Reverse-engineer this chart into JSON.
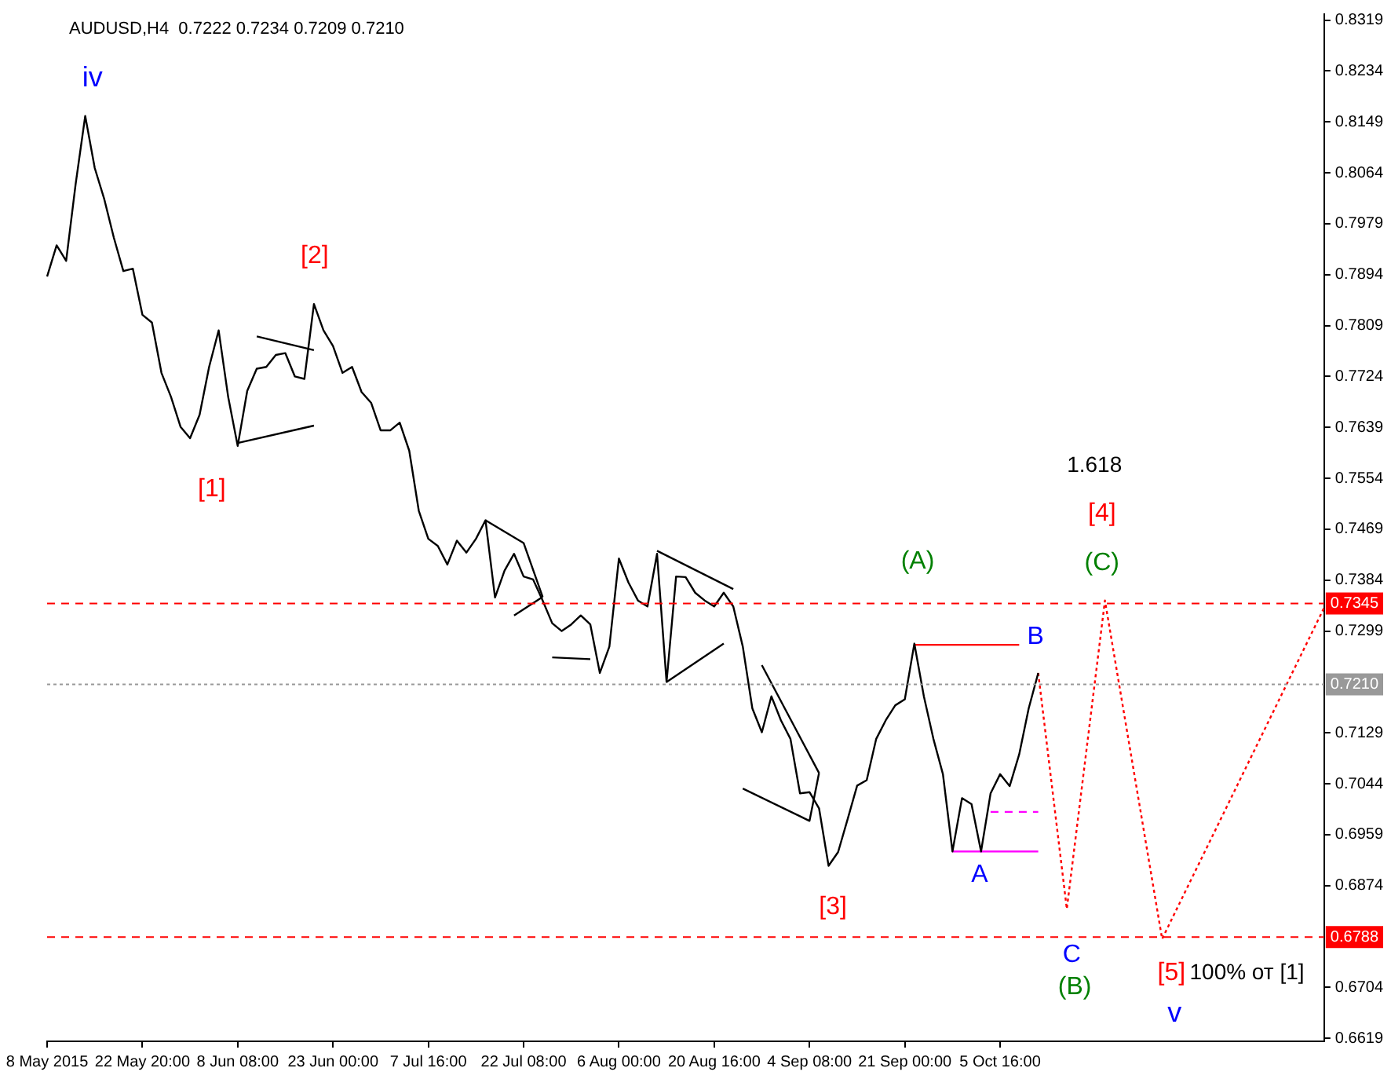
{
  "chart_data": {
    "type": "line",
    "title": "AUDUSD,H4  0.7222 0.7234 0.7209 0.7210",
    "marker": "none",
    "grid": false,
    "legend": false,
    "categories": [
      "8 May 2015",
      null,
      null,
      null,
      null,
      null,
      null,
      null,
      null,
      null,
      "22 May 20:00",
      null,
      null,
      null,
      null,
      null,
      null,
      null,
      null,
      null,
      "8 Jun 08:00",
      null,
      null,
      null,
      null,
      null,
      null,
      null,
      null,
      null,
      "23 Jun 00:00",
      null,
      null,
      null,
      null,
      null,
      null,
      null,
      null,
      null,
      "7 Jul 16:00",
      null,
      null,
      null,
      null,
      null,
      null,
      null,
      null,
      null,
      "22 Jul 08:00",
      null,
      null,
      null,
      null,
      null,
      null,
      null,
      null,
      null,
      "6 Aug 00:00",
      null,
      null,
      null,
      null,
      null,
      null,
      null,
      null,
      null,
      "20 Aug 16:00",
      null,
      null,
      null,
      null,
      null,
      null,
      null,
      null,
      null,
      "4 Sep 08:00",
      null,
      null,
      null,
      null,
      null,
      null,
      null,
      null,
      null,
      "21 Sep 00:00",
      null,
      null,
      null,
      null,
      null,
      null,
      null,
      null,
      null,
      "5 Oct 16:00",
      null,
      null,
      null,
      null,
      null,
      null,
      null,
      null,
      null,
      null,
      null,
      null,
      null,
      null,
      null,
      null,
      null,
      null,
      null,
      null,
      null,
      null,
      null,
      null,
      null,
      null,
      null,
      null,
      null,
      null,
      null,
      null,
      null,
      null
    ],
    "ylim": [
      0.6614,
      0.8329
    ],
    "yticks": [
      0.6619,
      0.6704,
      0.6874,
      0.6959,
      0.7044,
      0.7129,
      0.7299,
      0.7384,
      0.7469,
      0.7554,
      0.7639,
      0.7724,
      0.7809,
      0.7894,
      0.7979,
      0.8064,
      0.8149,
      0.8234,
      0.8319
    ],
    "series": [
      {
        "color": "#000000",
        "line_style": "solid",
        "values": [
          0.7891,
          0.7943,
          0.7917,
          0.8046,
          0.8159,
          0.8072,
          0.802,
          0.7956,
          0.79,
          0.7904,
          0.7827,
          0.7814,
          0.773,
          0.769,
          0.764,
          0.7621,
          0.766,
          0.774,
          0.7801,
          0.769,
          0.7608,
          0.77,
          0.7737,
          0.774,
          0.776,
          0.7763,
          0.7724,
          0.772,
          0.7845,
          0.7801,
          0.7775,
          0.773,
          0.774,
          0.7698,
          0.768,
          0.7634,
          0.7634,
          0.7647,
          0.76,
          0.75,
          0.7453,
          0.7441,
          0.741,
          0.745,
          0.743,
          0.7453,
          0.7484,
          0.7355,
          0.74,
          0.7428,
          0.739,
          0.7385,
          0.735,
          0.7312,
          0.7299,
          0.731,
          0.7325,
          0.731,
          0.7229,
          0.7273,
          0.742,
          0.738,
          0.735,
          0.734,
          0.7428,
          0.7214,
          0.739,
          0.7389,
          0.7363,
          0.735,
          0.734,
          0.7363,
          0.734,
          0.7273,
          0.717,
          0.713,
          0.719,
          0.715,
          0.7119,
          0.7028,
          0.703,
          0.7003,
          0.6907,
          0.693,
          0.6985,
          0.7041,
          0.705,
          0.7119,
          0.715,
          0.7175,
          0.7185,
          0.7278,
          0.719,
          0.7119,
          0.706,
          0.6931,
          0.702,
          0.701,
          0.6931,
          0.7028,
          0.706,
          0.704,
          0.7093,
          0.717,
          0.7229,
          null,
          null,
          null,
          null,
          null,
          null,
          null,
          null,
          null,
          null,
          null,
          null,
          null,
          null,
          null,
          null,
          null,
          null,
          null,
          null,
          null,
          null,
          null,
          null,
          null,
          null,
          null,
          null,
          null,
          null
        ]
      },
      {
        "color": "#ff0000",
        "line_style": "dotted",
        "values": [
          null,
          null,
          null,
          null,
          null,
          null,
          null,
          null,
          null,
          null,
          null,
          null,
          null,
          null,
          null,
          null,
          null,
          null,
          null,
          null,
          null,
          null,
          null,
          null,
          null,
          null,
          null,
          null,
          null,
          null,
          null,
          null,
          null,
          null,
          null,
          null,
          null,
          null,
          null,
          null,
          null,
          null,
          null,
          null,
          null,
          null,
          null,
          null,
          null,
          null,
          null,
          null,
          null,
          null,
          null,
          null,
          null,
          null,
          null,
          null,
          null,
          null,
          null,
          null,
          null,
          null,
          null,
          null,
          null,
          null,
          null,
          null,
          null,
          null,
          null,
          null,
          null,
          null,
          null,
          null,
          null,
          null,
          null,
          null,
          null,
          null,
          null,
          null,
          null,
          null,
          null,
          null,
          null,
          null,
          null,
          null,
          null,
          null,
          null,
          null,
          null,
          null,
          null,
          null,
          0.7229,
          null,
          null,
          0.6835,
          null,
          null,
          null,
          0.735,
          null,
          null,
          null,
          null,
          null,
          0.6785,
          null,
          null,
          null,
          null,
          null,
          null,
          null,
          null,
          null,
          null,
          null,
          null,
          null,
          null,
          null,
          null,
          0.7338
        ]
      },
      {
        "color": "#ff0000",
        "line_style": "solid",
        "values": [
          null,
          null,
          null,
          null,
          null,
          null,
          null,
          null,
          null,
          null,
          null,
          null,
          null,
          null,
          null,
          null,
          null,
          null,
          null,
          null,
          null,
          null,
          null,
          null,
          null,
          null,
          null,
          null,
          null,
          null,
          null,
          null,
          null,
          null,
          null,
          null,
          null,
          null,
          null,
          null,
          null,
          null,
          null,
          null,
          null,
          null,
          null,
          null,
          null,
          null,
          null,
          null,
          null,
          null,
          null,
          null,
          null,
          null,
          null,
          null,
          null,
          null,
          null,
          null,
          null,
          null,
          null,
          null,
          null,
          null,
          null,
          null,
          null,
          null,
          null,
          null,
          null,
          null,
          null,
          null,
          null,
          null,
          null,
          null,
          null,
          null,
          null,
          null,
          null,
          null,
          null,
          0.7276,
          null,
          null,
          null,
          null,
          null,
          null,
          null,
          null,
          null,
          null,
          0.7276,
          null,
          null,
          null,
          null,
          null,
          null,
          null,
          null,
          null,
          null,
          null,
          null,
          null,
          null,
          null,
          null,
          null,
          null,
          null,
          null,
          null,
          null,
          null,
          null,
          null,
          null,
          null,
          null,
          null,
          null,
          null,
          null
        ]
      },
      {
        "color": "#ff00ff",
        "line_style": "solid",
        "values": [
          null,
          null,
          null,
          null,
          null,
          null,
          null,
          null,
          null,
          null,
          null,
          null,
          null,
          null,
          null,
          null,
          null,
          null,
          null,
          null,
          null,
          null,
          null,
          null,
          null,
          null,
          null,
          null,
          null,
          null,
          null,
          null,
          null,
          null,
          null,
          null,
          null,
          null,
          null,
          null,
          null,
          null,
          null,
          null,
          null,
          null,
          null,
          null,
          null,
          null,
          null,
          null,
          null,
          null,
          null,
          null,
          null,
          null,
          null,
          null,
          null,
          null,
          null,
          null,
          null,
          null,
          null,
          null,
          null,
          null,
          null,
          null,
          null,
          null,
          null,
          null,
          null,
          null,
          null,
          null,
          null,
          null,
          null,
          null,
          null,
          null,
          null,
          null,
          null,
          null,
          null,
          null,
          null,
          null,
          null,
          0.6931,
          null,
          null,
          null,
          null,
          null,
          null,
          null,
          null,
          0.6931,
          null,
          null,
          null,
          null,
          null,
          null,
          null,
          null,
          null,
          null,
          null,
          null,
          null,
          null,
          null,
          null,
          null,
          null,
          null,
          null,
          null,
          null,
          null,
          null,
          null,
          null,
          null,
          null,
          null,
          null
        ]
      },
      {
        "color": "#ff00ff",
        "line_style": "dashed",
        "values": [
          null,
          null,
          null,
          null,
          null,
          null,
          null,
          null,
          null,
          null,
          null,
          null,
          null,
          null,
          null,
          null,
          null,
          null,
          null,
          null,
          null,
          null,
          null,
          null,
          null,
          null,
          null,
          null,
          null,
          null,
          null,
          null,
          null,
          null,
          null,
          null,
          null,
          null,
          null,
          null,
          null,
          null,
          null,
          null,
          null,
          null,
          null,
          null,
          null,
          null,
          null,
          null,
          null,
          null,
          null,
          null,
          null,
          null,
          null,
          null,
          null,
          null,
          null,
          null,
          null,
          null,
          null,
          null,
          null,
          null,
          null,
          null,
          null,
          null,
          null,
          null,
          null,
          null,
          null,
          null,
          null,
          null,
          null,
          null,
          null,
          null,
          null,
          null,
          null,
          null,
          null,
          null,
          null,
          null,
          null,
          null,
          null,
          null,
          null,
          0.6997,
          null,
          null,
          null,
          null,
          0.6997,
          null,
          null,
          null,
          null,
          null,
          null,
          null,
          null,
          null,
          null,
          null,
          null,
          null,
          null,
          null,
          null,
          null,
          null,
          null,
          null,
          null,
          null,
          null,
          null,
          null,
          null,
          null,
          null,
          null,
          null
        ]
      },
      {
        "color": "#000000",
        "line_style": "solid",
        "values": [
          null,
          null,
          null,
          null,
          null,
          null,
          null,
          null,
          null,
          null,
          null,
          null,
          null,
          null,
          null,
          null,
          null,
          null,
          null,
          null,
          null,
          null,
          0.7791,
          null,
          null,
          null,
          null,
          null,
          0.7768,
          null,
          null,
          null,
          null,
          null,
          null,
          null,
          null,
          null,
          null,
          null,
          null,
          null,
          null,
          null,
          null,
          null,
          null,
          null,
          null,
          null,
          null,
          null,
          null,
          null,
          null,
          null,
          null,
          null,
          null,
          null,
          null,
          null,
          null,
          null,
          null,
          null,
          null,
          null,
          null,
          null,
          null,
          null,
          null,
          null,
          null,
          null,
          null,
          null,
          null,
          null,
          null,
          null,
          null,
          null,
          null,
          null,
          null,
          null,
          null,
          null,
          null,
          null,
          null,
          null,
          null,
          null,
          null,
          null,
          null,
          null,
          null,
          null,
          null,
          null,
          null,
          null,
          null,
          null,
          null,
          null,
          null,
          null,
          null,
          null,
          null,
          null,
          null,
          null,
          null,
          null,
          null,
          null,
          null,
          null,
          null,
          null,
          null,
          null,
          null,
          null,
          null,
          null,
          null,
          null,
          null
        ]
      },
      {
        "color": "#000000",
        "line_style": "solid",
        "values": [
          null,
          null,
          null,
          null,
          null,
          null,
          null,
          null,
          null,
          null,
          null,
          null,
          null,
          null,
          null,
          null,
          null,
          null,
          null,
          null,
          0.7613,
          null,
          null,
          null,
          null,
          null,
          null,
          null,
          0.7642,
          null,
          null,
          null,
          null,
          null,
          null,
          null,
          null,
          null,
          null,
          null,
          null,
          null,
          null,
          null,
          null,
          null,
          null,
          null,
          null,
          null,
          null,
          null,
          null,
          null,
          null,
          null,
          null,
          null,
          null,
          null,
          null,
          null,
          null,
          null,
          null,
          null,
          null,
          null,
          null,
          null,
          null,
          null,
          null,
          null,
          null,
          null,
          null,
          null,
          null,
          null,
          null,
          null,
          null,
          null,
          null,
          null,
          null,
          null,
          null,
          null,
          null,
          null,
          null,
          null,
          null,
          null,
          null,
          null,
          null,
          null,
          null,
          null,
          null,
          null,
          null,
          null,
          null,
          null,
          null,
          null,
          null,
          null,
          null,
          null,
          null,
          null,
          null,
          null,
          null,
          null,
          null,
          null,
          null,
          null,
          null,
          null,
          null,
          null,
          null,
          null,
          null,
          null,
          null,
          null,
          null
        ]
      },
      {
        "color": "#000000",
        "line_style": "solid",
        "values": [
          null,
          null,
          null,
          null,
          null,
          null,
          null,
          null,
          null,
          null,
          null,
          null,
          null,
          null,
          null,
          null,
          null,
          null,
          null,
          null,
          null,
          null,
          null,
          null,
          null,
          null,
          null,
          null,
          null,
          null,
          null,
          null,
          null,
          null,
          null,
          null,
          null,
          null,
          null,
          null,
          null,
          null,
          null,
          null,
          null,
          null,
          0.7484,
          null,
          null,
          null,
          0.7446,
          null,
          0.7356,
          null,
          null,
          null,
          null,
          null,
          null,
          null,
          null,
          null,
          null,
          null,
          null,
          null,
          null,
          null,
          null,
          null,
          null,
          null,
          null,
          null,
          null,
          null,
          null,
          null,
          null,
          null,
          null,
          null,
          null,
          null,
          null,
          null,
          null,
          null,
          null,
          null,
          null,
          null,
          null,
          null,
          null,
          null,
          null,
          null,
          null,
          null,
          null,
          null,
          null,
          null,
          null,
          null,
          null,
          null,
          null,
          null,
          null,
          null,
          null,
          null,
          null,
          null,
          null,
          null,
          null,
          null,
          null,
          null,
          null,
          null,
          null,
          null,
          null,
          null,
          null,
          null,
          null,
          null,
          null,
          null,
          null
        ]
      },
      {
        "color": "#000000",
        "line_style": "solid",
        "values": [
          null,
          null,
          null,
          null,
          null,
          null,
          null,
          null,
          null,
          null,
          null,
          null,
          null,
          null,
          null,
          null,
          null,
          null,
          null,
          null,
          null,
          null,
          null,
          null,
          null,
          null,
          null,
          null,
          null,
          null,
          null,
          null,
          null,
          null,
          null,
          null,
          null,
          null,
          null,
          null,
          null,
          null,
          null,
          null,
          null,
          null,
          null,
          null,
          null,
          0.7325,
          null,
          null,
          0.7356,
          null,
          null,
          null,
          null,
          null,
          null,
          null,
          null,
          null,
          null,
          null,
          null,
          null,
          null,
          null,
          null,
          null,
          null,
          null,
          null,
          null,
          null,
          null,
          null,
          null,
          null,
          null,
          null,
          null,
          null,
          null,
          null,
          null,
          null,
          null,
          null,
          null,
          null,
          null,
          null,
          null,
          null,
          null,
          null,
          null,
          null,
          null,
          null,
          null,
          null,
          null,
          null,
          null,
          null,
          null,
          null,
          null,
          null,
          null,
          null,
          null,
          null,
          null,
          null,
          null,
          null,
          null,
          null,
          null,
          null,
          null,
          null,
          null,
          null,
          null,
          null,
          null,
          null,
          null,
          null,
          null,
          null
        ]
      },
      {
        "color": "#000000",
        "line_style": "solid",
        "values": [
          null,
          null,
          null,
          null,
          null,
          null,
          null,
          null,
          null,
          null,
          null,
          null,
          null,
          null,
          null,
          null,
          null,
          null,
          null,
          null,
          null,
          null,
          null,
          null,
          null,
          null,
          null,
          null,
          null,
          null,
          null,
          null,
          null,
          null,
          null,
          null,
          null,
          null,
          null,
          null,
          null,
          null,
          null,
          null,
          null,
          null,
          null,
          null,
          null,
          null,
          null,
          null,
          null,
          0.7255,
          null,
          null,
          null,
          0.7252,
          null,
          null,
          null,
          null,
          null,
          null,
          null,
          null,
          null,
          null,
          null,
          null,
          null,
          null,
          null,
          null,
          null,
          null,
          null,
          null,
          null,
          null,
          null,
          null,
          null,
          null,
          null,
          null,
          null,
          null,
          null,
          null,
          null,
          null,
          null,
          null,
          null,
          null,
          null,
          null,
          null,
          null,
          null,
          null,
          null,
          null,
          null,
          null,
          null,
          null,
          null,
          null,
          null,
          null,
          null,
          null,
          null,
          null,
          null,
          null,
          null,
          null,
          null,
          null,
          null,
          null,
          null,
          null,
          null,
          null,
          null,
          null,
          null,
          null,
          null,
          null,
          null
        ]
      },
      {
        "color": "#000000",
        "line_style": "solid",
        "values": [
          null,
          null,
          null,
          null,
          null,
          null,
          null,
          null,
          null,
          null,
          null,
          null,
          null,
          null,
          null,
          null,
          null,
          null,
          null,
          null,
          null,
          null,
          null,
          null,
          null,
          null,
          null,
          null,
          null,
          null,
          null,
          null,
          null,
          null,
          null,
          null,
          null,
          null,
          null,
          null,
          null,
          null,
          null,
          null,
          null,
          null,
          null,
          null,
          null,
          null,
          null,
          null,
          null,
          null,
          null,
          null,
          null,
          null,
          null,
          null,
          null,
          null,
          null,
          null,
          0.7433,
          null,
          null,
          null,
          null,
          null,
          null,
          null,
          0.7369,
          null,
          null,
          null,
          null,
          null,
          null,
          null,
          null,
          null,
          null,
          null,
          null,
          null,
          null,
          null,
          null,
          null,
          null,
          null,
          null,
          null,
          null,
          null,
          null,
          null,
          null,
          null,
          null,
          null,
          null,
          null,
          null,
          null,
          null,
          null,
          null,
          null,
          null,
          null,
          null,
          null,
          null,
          null,
          null,
          null,
          null,
          null,
          null,
          null,
          null,
          null,
          null,
          null,
          null,
          null,
          null,
          null,
          null,
          null,
          null,
          null,
          null
        ]
      },
      {
        "color": "#000000",
        "line_style": "solid",
        "values": [
          null,
          null,
          null,
          null,
          null,
          null,
          null,
          null,
          null,
          null,
          null,
          null,
          null,
          null,
          null,
          null,
          null,
          null,
          null,
          null,
          null,
          null,
          null,
          null,
          null,
          null,
          null,
          null,
          null,
          null,
          null,
          null,
          null,
          null,
          null,
          null,
          null,
          null,
          null,
          null,
          null,
          null,
          null,
          null,
          null,
          null,
          null,
          null,
          null,
          null,
          null,
          null,
          null,
          null,
          null,
          null,
          null,
          null,
          null,
          null,
          null,
          null,
          null,
          null,
          null,
          0.7214,
          null,
          null,
          null,
          null,
          null,
          0.7278,
          null,
          null,
          null,
          null,
          null,
          null,
          null,
          null,
          null,
          null,
          null,
          null,
          null,
          null,
          null,
          null,
          null,
          null,
          null,
          null,
          null,
          null,
          null,
          null,
          null,
          null,
          null,
          null,
          null,
          null,
          null,
          null,
          null,
          null,
          null,
          null,
          null,
          null,
          null,
          null,
          null,
          null,
          null,
          null,
          null,
          null,
          null,
          null,
          null,
          null,
          null,
          null,
          null,
          null,
          null,
          null,
          null,
          null,
          null,
          null,
          null,
          null,
          null
        ]
      },
      {
        "color": "#000000",
        "line_style": "solid",
        "values": [
          null,
          null,
          null,
          null,
          null,
          null,
          null,
          null,
          null,
          null,
          null,
          null,
          null,
          null,
          null,
          null,
          null,
          null,
          null,
          null,
          null,
          null,
          null,
          null,
          null,
          null,
          null,
          null,
          null,
          null,
          null,
          null,
          null,
          null,
          null,
          null,
          null,
          null,
          null,
          null,
          null,
          null,
          null,
          null,
          null,
          null,
          null,
          null,
          null,
          null,
          null,
          null,
          null,
          null,
          null,
          null,
          null,
          null,
          null,
          null,
          null,
          null,
          null,
          null,
          null,
          null,
          null,
          null,
          null,
          null,
          null,
          null,
          null,
          null,
          null,
          0.7242,
          null,
          null,
          null,
          null,
          null,
          0.7062,
          null,
          null,
          null,
          null,
          null,
          null,
          null,
          null,
          null,
          null,
          null,
          null,
          null,
          null,
          null,
          null,
          null,
          null,
          null,
          null,
          null,
          null,
          null,
          null,
          null,
          null,
          null,
          null,
          null,
          null,
          null,
          null,
          null,
          null,
          null,
          null,
          null,
          null,
          null,
          null,
          null,
          null,
          null,
          null,
          null,
          null,
          null,
          null,
          null,
          null,
          null,
          null,
          null
        ]
      },
      {
        "color": "#000000",
        "line_style": "solid",
        "values": [
          null,
          null,
          null,
          null,
          null,
          null,
          null,
          null,
          null,
          null,
          null,
          null,
          null,
          null,
          null,
          null,
          null,
          null,
          null,
          null,
          null,
          null,
          null,
          null,
          null,
          null,
          null,
          null,
          null,
          null,
          null,
          null,
          null,
          null,
          null,
          null,
          null,
          null,
          null,
          null,
          null,
          null,
          null,
          null,
          null,
          null,
          null,
          null,
          null,
          null,
          null,
          null,
          null,
          null,
          null,
          null,
          null,
          null,
          null,
          null,
          null,
          null,
          null,
          null,
          null,
          null,
          null,
          null,
          null,
          null,
          null,
          null,
          null,
          0.7036,
          null,
          null,
          null,
          null,
          null,
          null,
          0.6982,
          0.7062,
          null,
          null,
          null,
          null,
          null,
          null,
          null,
          null,
          null,
          null,
          null,
          null,
          null,
          null,
          null,
          null,
          null,
          null,
          null,
          null,
          null,
          null,
          null,
          null,
          null,
          null,
          null,
          null,
          null,
          null,
          null,
          null,
          null,
          null,
          null,
          null,
          null,
          null,
          null,
          null,
          null,
          null,
          null,
          null,
          null,
          null,
          null,
          null,
          null,
          null,
          null,
          null,
          null
        ]
      }
    ],
    "ref_lines": [
      {
        "axis": "y",
        "value": 0.7345,
        "label": "0.7345",
        "color": "#ff0000",
        "line_style": "dashed"
      },
      {
        "axis": "y",
        "value": 0.6788,
        "label": "0.6788",
        "color": "#ff0000",
        "line_style": "dashed"
      },
      {
        "axis": "y",
        "value": 0.721,
        "label": "0.7210",
        "color": "#999999",
        "line_style": "dotted"
      }
    ],
    "annotations": [
      "iv",
      "[2]",
      "[1]",
      "[3]",
      "(A)",
      "B",
      "A",
      "1.618",
      "[4]",
      "(C)",
      "C",
      "(B)",
      "[5]",
      "100% от [1]",
      "v"
    ]
  }
}
